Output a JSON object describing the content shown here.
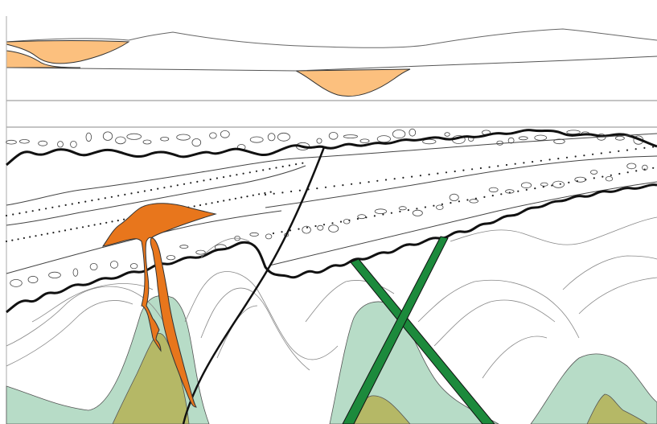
{
  "diagram": {
    "kind": "geological cross-section",
    "colors": {
      "background": "#ffffff",
      "sediment_lens": "#fcc07e",
      "sill_dike": "#e8761c",
      "green_dike": "#1c8a3c",
      "pale_layer": "#b7dcc7",
      "olive_core": "#b5b866",
      "unconformity": "#111111",
      "thin_line": "#555555",
      "fault": "#111111"
    },
    "layers": [
      "top-surface",
      "sediment-lens-left",
      "sediment-lens-center",
      "horizontal-strata",
      "upper-unconformity",
      "pebble-layer",
      "dotted-sandstone-layer",
      "lower-unconformity",
      "folded-basement",
      "fault",
      "orange-sill-and-dike",
      "green-dikes"
    ]
  }
}
